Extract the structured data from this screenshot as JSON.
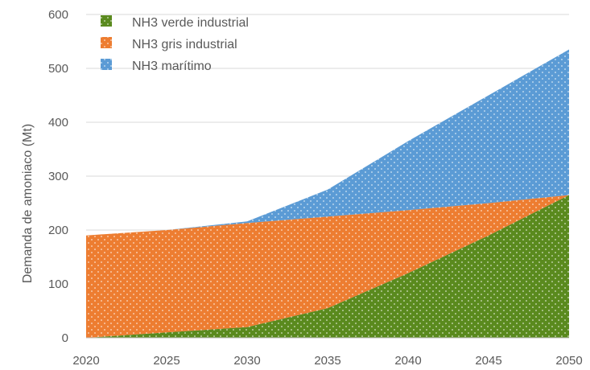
{
  "chart_data": {
    "type": "area",
    "stacked": true,
    "title": "",
    "xlabel": "",
    "ylabel": "Demanda de amoniaco (Mt)",
    "x": [
      2020,
      2025,
      2030,
      2035,
      2040,
      2045,
      2050
    ],
    "ylim": [
      0,
      600
    ],
    "yticks": [
      0,
      100,
      200,
      300,
      400,
      500,
      600
    ],
    "grid": true,
    "legend_position": "top-left",
    "series": [
      {
        "name": "NH3 verde industrial",
        "color": "#5a8a1e",
        "values": [
          0,
          10,
          20,
          55,
          120,
          190,
          265
        ]
      },
      {
        "name": "NH3 gris industrial",
        "color": "#ed7d31",
        "values": [
          190,
          190,
          193,
          170,
          117,
          60,
          0
        ]
      },
      {
        "name": "NH3 marítimo",
        "color": "#5b9bd5",
        "values": [
          0,
          0,
          3,
          50,
          128,
          200,
          270
        ]
      }
    ]
  }
}
